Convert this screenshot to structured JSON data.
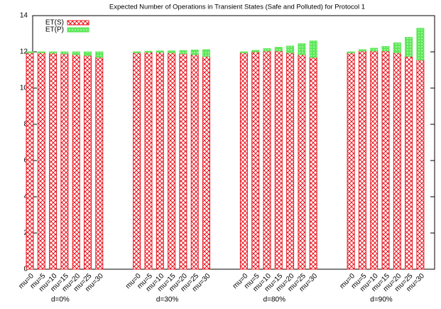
{
  "chart_data": {
    "type": "bar",
    "stacked": true,
    "title": "Expected Number of Operations in Transient States (Safe and Polluted) for Protocol 1",
    "categories": [
      "mu=0",
      "mu=5",
      "mu=10",
      "mu=15",
      "mu=20",
      "mu=25",
      "mu=30",
      "mu=0",
      "mu=5",
      "mu=10",
      "mu=15",
      "mu=20",
      "mu=25",
      "mu=30",
      "mu=0",
      "mu=5",
      "mu=10",
      "mu=15",
      "mu=20",
      "mu=25",
      "mu=30",
      "mu=0",
      "mu=5",
      "mu=10",
      "mu=15",
      "mu=20",
      "mu=25",
      "mu=30"
    ],
    "group_labels": [
      "d=0%",
      "d=30%",
      "d=80%",
      "d=90%"
    ],
    "series": [
      {
        "name": "ET(S)",
        "color": "#e8141e",
        "values": [
          11.95,
          11.95,
          11.93,
          11.9,
          11.85,
          11.8,
          11.7,
          11.95,
          11.98,
          11.98,
          11.95,
          11.9,
          11.85,
          11.75,
          11.95,
          12.0,
          12.05,
          12.05,
          11.95,
          11.85,
          11.7,
          11.95,
          12.05,
          12.05,
          12.05,
          11.95,
          11.75,
          11.55
        ]
      },
      {
        "name": "ET(P)",
        "color": "#5ee85a",
        "values": [
          0.05,
          0.05,
          0.07,
          0.1,
          0.15,
          0.2,
          0.3,
          0.05,
          0.05,
          0.07,
          0.1,
          0.17,
          0.25,
          0.37,
          0.05,
          0.08,
          0.13,
          0.2,
          0.37,
          0.6,
          0.9,
          0.05,
          0.07,
          0.15,
          0.25,
          0.55,
          1.05,
          1.75
        ]
      }
    ],
    "ylim": [
      0,
      14
    ],
    "yticks": [
      0,
      2,
      4,
      6,
      8,
      10,
      12,
      14
    ],
    "grid": false,
    "legend": "top-left"
  }
}
